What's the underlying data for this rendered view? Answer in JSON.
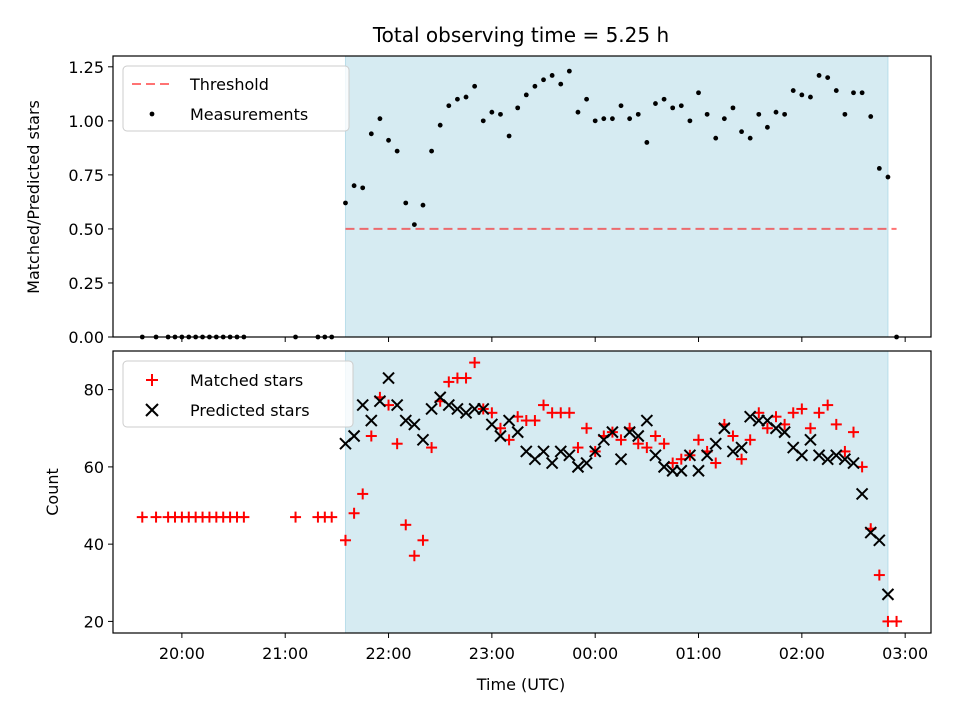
{
  "title": "Total observing time = 5.25 h",
  "colors": {
    "shade": "#add8e6",
    "threshold": "#ff0000",
    "measurement": "#000000",
    "matched": "#ff0000",
    "predicted": "#000000"
  },
  "chart_data": [
    {
      "type": "scatter",
      "ylabel": "Matched/Predicted stars",
      "xlabel": "",
      "xlim": [
        "19:20",
        "03:15"
      ],
      "ylim": [
        0,
        1.3
      ],
      "y_ticks": [
        "0.00",
        "0.25",
        "0.50",
        "0.75",
        "1.00",
        "1.25"
      ],
      "shaded_span": [
        "21:35",
        "02:50"
      ],
      "legend_position": "upper-left",
      "legend": [
        "Threshold",
        "Measurements"
      ],
      "threshold": {
        "name": "Threshold",
        "value": 0.5,
        "x_range": [
          "21:35",
          "02:55"
        ]
      },
      "series": [
        {
          "name": "Measurements",
          "points": [
            [
              "19:37",
              0
            ],
            [
              "19:45",
              0
            ],
            [
              "19:52",
              0
            ],
            [
              "19:56",
              0
            ],
            [
              "20:00",
              0
            ],
            [
              "20:04",
              0
            ],
            [
              "20:08",
              0
            ],
            [
              "20:12",
              0
            ],
            [
              "20:16",
              0
            ],
            [
              "20:20",
              0
            ],
            [
              "20:24",
              0
            ],
            [
              "20:28",
              0
            ],
            [
              "20:32",
              0
            ],
            [
              "20:36",
              0
            ],
            [
              "21:06",
              0
            ],
            [
              "21:19",
              0
            ],
            [
              "21:23",
              0
            ],
            [
              "21:27",
              0
            ],
            [
              "21:35",
              0.62
            ],
            [
              "21:40",
              0.7
            ],
            [
              "21:45",
              0.69
            ],
            [
              "21:50",
              0.94
            ],
            [
              "21:55",
              1.01
            ],
            [
              "22:00",
              0.91
            ],
            [
              "22:05",
              0.86
            ],
            [
              "22:10",
              0.62
            ],
            [
              "22:15",
              0.52
            ],
            [
              "22:20",
              0.61
            ],
            [
              "22:25",
              0.86
            ],
            [
              "22:30",
              0.98
            ],
            [
              "22:35",
              1.07
            ],
            [
              "22:40",
              1.1
            ],
            [
              "22:45",
              1.11
            ],
            [
              "22:50",
              1.16
            ],
            [
              "22:55",
              1.0
            ],
            [
              "23:00",
              1.04
            ],
            [
              "23:05",
              1.03
            ],
            [
              "23:10",
              0.93
            ],
            [
              "23:15",
              1.06
            ],
            [
              "23:20",
              1.12
            ],
            [
              "23:25",
              1.16
            ],
            [
              "23:30",
              1.19
            ],
            [
              "23:35",
              1.21
            ],
            [
              "23:40",
              1.17
            ],
            [
              "23:45",
              1.23
            ],
            [
              "23:50",
              1.04
            ],
            [
              "23:55",
              1.1
            ],
            [
              "00:00",
              1.0
            ],
            [
              "00:05",
              1.01
            ],
            [
              "00:10",
              1.01
            ],
            [
              "00:15",
              1.07
            ],
            [
              "00:20",
              1.01
            ],
            [
              "00:25",
              1.03
            ],
            [
              "00:30",
              0.9
            ],
            [
              "00:35",
              1.08
            ],
            [
              "00:40",
              1.1
            ],
            [
              "00:45",
              1.06
            ],
            [
              "00:50",
              1.07
            ],
            [
              "00:55",
              1.0
            ],
            [
              "01:00",
              1.13
            ],
            [
              "01:05",
              1.03
            ],
            [
              "01:10",
              0.92
            ],
            [
              "01:15",
              1.01
            ],
            [
              "01:20",
              1.06
            ],
            [
              "01:25",
              0.95
            ],
            [
              "01:30",
              0.92
            ],
            [
              "01:35",
              1.03
            ],
            [
              "01:40",
              0.97
            ],
            [
              "01:45",
              1.04
            ],
            [
              "01:50",
              1.03
            ],
            [
              "01:55",
              1.14
            ],
            [
              "02:00",
              1.12
            ],
            [
              "02:05",
              1.11
            ],
            [
              "02:10",
              1.21
            ],
            [
              "02:15",
              1.2
            ],
            [
              "02:20",
              1.14
            ],
            [
              "02:25",
              1.03
            ],
            [
              "02:30",
              1.13
            ],
            [
              "02:35",
              1.13
            ],
            [
              "02:40",
              1.02
            ],
            [
              "02:45",
              0.78
            ],
            [
              "02:50",
              0.74
            ],
            [
              "02:55",
              0
            ]
          ]
        }
      ]
    },
    {
      "type": "scatter",
      "ylabel": "Count",
      "xlabel": "Time (UTC)",
      "xlim": [
        "19:20",
        "03:15"
      ],
      "ylim": [
        17,
        90
      ],
      "y_ticks": [
        "20",
        "40",
        "60",
        "80"
      ],
      "x_ticks": [
        "20:00",
        "21:00",
        "22:00",
        "23:00",
        "00:00",
        "01:00",
        "02:00",
        "03:00"
      ],
      "shaded_span": [
        "21:35",
        "02:50"
      ],
      "legend_position": "upper-left",
      "legend": [
        "Matched stars",
        "Predicted stars"
      ],
      "series": [
        {
          "name": "Matched stars",
          "marker": "plus",
          "points": [
            [
              "19:37",
              47
            ],
            [
              "19:45",
              47
            ],
            [
              "19:52",
              47
            ],
            [
              "19:56",
              47
            ],
            [
              "20:00",
              47
            ],
            [
              "20:04",
              47
            ],
            [
              "20:08",
              47
            ],
            [
              "20:12",
              47
            ],
            [
              "20:16",
              47
            ],
            [
              "20:20",
              47
            ],
            [
              "20:24",
              47
            ],
            [
              "20:28",
              47
            ],
            [
              "20:32",
              47
            ],
            [
              "20:36",
              47
            ],
            [
              "21:06",
              47
            ],
            [
              "21:19",
              47
            ],
            [
              "21:23",
              47
            ],
            [
              "21:27",
              47
            ],
            [
              "21:35",
              41
            ],
            [
              "21:40",
              48
            ],
            [
              "21:45",
              53
            ],
            [
              "21:50",
              68
            ],
            [
              "21:55",
              78
            ],
            [
              "22:00",
              76
            ],
            [
              "22:05",
              66
            ],
            [
              "22:10",
              45
            ],
            [
              "22:15",
              37
            ],
            [
              "22:20",
              41
            ],
            [
              "22:25",
              65
            ],
            [
              "22:30",
              77
            ],
            [
              "22:35",
              82
            ],
            [
              "22:40",
              83
            ],
            [
              "22:45",
              83
            ],
            [
              "22:50",
              87
            ],
            [
              "22:55",
              75
            ],
            [
              "23:00",
              74
            ],
            [
              "23:05",
              70
            ],
            [
              "23:10",
              67
            ],
            [
              "23:15",
              73
            ],
            [
              "23:20",
              72
            ],
            [
              "23:25",
              72
            ],
            [
              "23:30",
              76
            ],
            [
              "23:35",
              74
            ],
            [
              "23:40",
              74
            ],
            [
              "23:45",
              74
            ],
            [
              "23:50",
              65
            ],
            [
              "23:55",
              70
            ],
            [
              "00:00",
              64
            ],
            [
              "00:05",
              68
            ],
            [
              "00:10",
              69
            ],
            [
              "00:15",
              67
            ],
            [
              "00:20",
              70
            ],
            [
              "00:25",
              66
            ],
            [
              "00:30",
              65
            ],
            [
              "00:35",
              68
            ],
            [
              "00:40",
              66
            ],
            [
              "00:45",
              61
            ],
            [
              "00:50",
              62
            ],
            [
              "00:55",
              63
            ],
            [
              "01:00",
              67
            ],
            [
              "01:05",
              64
            ],
            [
              "01:10",
              61
            ],
            [
              "01:15",
              71
            ],
            [
              "01:20",
              68
            ],
            [
              "01:25",
              62
            ],
            [
              "01:30",
              67
            ],
            [
              "01:35",
              74
            ],
            [
              "01:40",
              70
            ],
            [
              "01:45",
              73
            ],
            [
              "01:50",
              71
            ],
            [
              "01:55",
              74
            ],
            [
              "02:00",
              75
            ],
            [
              "02:05",
              70
            ],
            [
              "02:10",
              74
            ],
            [
              "02:15",
              76
            ],
            [
              "02:20",
              71
            ],
            [
              "02:25",
              64
            ],
            [
              "02:30",
              69
            ],
            [
              "02:35",
              60
            ],
            [
              "02:40",
              44
            ],
            [
              "02:45",
              32
            ],
            [
              "02:50",
              20
            ],
            [
              "02:55",
              20
            ]
          ]
        },
        {
          "name": "Predicted stars",
          "marker": "x",
          "points": [
            [
              "21:35",
              66
            ],
            [
              "21:40",
              68
            ],
            [
              "21:45",
              76
            ],
            [
              "21:50",
              72
            ],
            [
              "21:55",
              77
            ],
            [
              "22:00",
              83
            ],
            [
              "22:05",
              76
            ],
            [
              "22:10",
              72
            ],
            [
              "22:15",
              71
            ],
            [
              "22:20",
              67
            ],
            [
              "22:25",
              75
            ],
            [
              "22:30",
              78
            ],
            [
              "22:35",
              76
            ],
            [
              "22:40",
              75
            ],
            [
              "22:45",
              74
            ],
            [
              "22:50",
              75
            ],
            [
              "22:55",
              75
            ],
            [
              "23:00",
              71
            ],
            [
              "23:05",
              68
            ],
            [
              "23:10",
              72
            ],
            [
              "23:15",
              69
            ],
            [
              "23:20",
              64
            ],
            [
              "23:25",
              62
            ],
            [
              "23:30",
              64
            ],
            [
              "23:35",
              61
            ],
            [
              "23:40",
              64
            ],
            [
              "23:45",
              63
            ],
            [
              "23:50",
              60
            ],
            [
              "23:55",
              61
            ],
            [
              "00:00",
              64
            ],
            [
              "00:05",
              67
            ],
            [
              "00:10",
              69
            ],
            [
              "00:15",
              62
            ],
            [
              "00:20",
              69
            ],
            [
              "00:25",
              68
            ],
            [
              "00:30",
              72
            ],
            [
              "00:35",
              63
            ],
            [
              "00:40",
              60
            ],
            [
              "00:45",
              59
            ],
            [
              "00:50",
              59
            ],
            [
              "00:55",
              63
            ],
            [
              "01:00",
              59
            ],
            [
              "01:05",
              63
            ],
            [
              "01:10",
              66
            ],
            [
              "01:15",
              70
            ],
            [
              "01:20",
              64
            ],
            [
              "01:25",
              65
            ],
            [
              "01:30",
              73
            ],
            [
              "01:35",
              72
            ],
            [
              "01:40",
              72
            ],
            [
              "01:45",
              70
            ],
            [
              "01:50",
              69
            ],
            [
              "01:55",
              65
            ],
            [
              "02:00",
              63
            ],
            [
              "02:05",
              67
            ],
            [
              "02:10",
              63
            ],
            [
              "02:15",
              62
            ],
            [
              "02:20",
              63
            ],
            [
              "02:25",
              62
            ],
            [
              "02:30",
              61
            ],
            [
              "02:35",
              53
            ],
            [
              "02:40",
              43
            ],
            [
              "02:45",
              41
            ],
            [
              "02:50",
              27
            ]
          ]
        }
      ]
    }
  ]
}
